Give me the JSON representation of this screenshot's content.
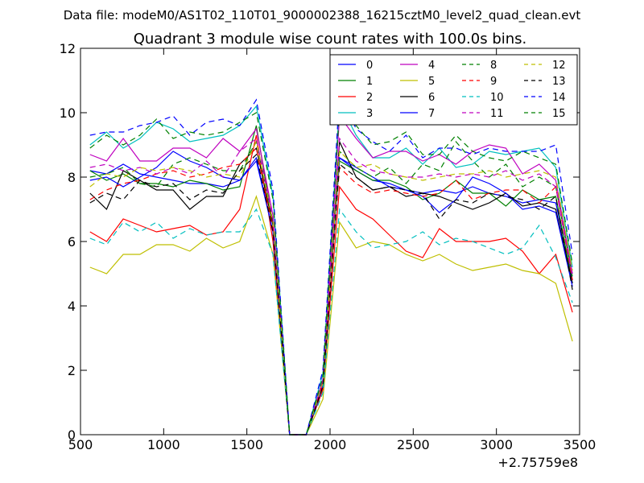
{
  "figure": {
    "suptitle": "Data file: modeM0/AS1T02_110T01_9000002388_16215cztM0_level2_quad_clean.evt"
  },
  "chart_data": {
    "type": "line",
    "title": "Quadrant 3 module wise count rates with 100.0s bins.",
    "xlabel": "",
    "ylabel": "",
    "x_offset_label": "+2.75759e8",
    "xlim": [
      500,
      3500
    ],
    "ylim": [
      0,
      12
    ],
    "xticks": [
      500,
      1000,
      1500,
      2000,
      2500,
      3000,
      3500
    ],
    "yticks": [
      0,
      2,
      4,
      6,
      8,
      10,
      12
    ],
    "grid": false,
    "legend_position": "top-right",
    "legend_columns": 4,
    "x": [
      557,
      657,
      757,
      857,
      957,
      1057,
      1157,
      1257,
      1357,
      1457,
      1557,
      1657,
      1757,
      1857,
      1957,
      2057,
      2157,
      2257,
      2357,
      2457,
      2557,
      2657,
      2757,
      2857,
      2957,
      3057,
      3157,
      3257,
      3357,
      3457
    ],
    "series": [
      {
        "name": "0",
        "color": "#0000ff",
        "dash": "solid",
        "values": [
          8.2,
          8.1,
          8.4,
          8.1,
          8.0,
          7.9,
          7.8,
          7.8,
          7.7,
          7.9,
          8.6,
          6.3,
          0,
          0,
          1.6,
          8.6,
          8.2,
          7.9,
          7.8,
          7.6,
          7.5,
          7.6,
          7.5,
          7.7,
          7.5,
          7.4,
          7.2,
          7.3,
          7.2,
          4.8
        ]
      },
      {
        "name": "1",
        "color": "#008000",
        "dash": "solid",
        "values": [
          8.2,
          7.9,
          8.1,
          7.8,
          7.8,
          7.7,
          7.9,
          7.8,
          7.6,
          7.7,
          9.6,
          6.5,
          0,
          0,
          1.6,
          8.5,
          8.2,
          7.9,
          7.9,
          7.7,
          7.3,
          7.5,
          7.9,
          7.5,
          7.5,
          7.1,
          7.6,
          7.3,
          7.4,
          4.7
        ]
      },
      {
        "name": "2",
        "color": "#ff0000",
        "dash": "solid",
        "values": [
          6.3,
          6.0,
          6.7,
          6.5,
          6.3,
          6.4,
          6.5,
          6.2,
          6.3,
          7.0,
          9.3,
          6.0,
          0,
          0,
          1.4,
          7.7,
          7.0,
          6.7,
          6.2,
          5.7,
          5.5,
          6.4,
          6.0,
          6.0,
          6.0,
          6.1,
          5.7,
          5.0,
          5.6,
          3.8
        ]
      },
      {
        "name": "3",
        "color": "#00bfbf",
        "dash": "solid",
        "values": [
          9.0,
          9.4,
          8.9,
          9.2,
          9.7,
          9.5,
          9.1,
          9.2,
          9.3,
          9.6,
          10.2,
          7.4,
          0,
          0,
          1.9,
          10.3,
          9.3,
          8.6,
          8.6,
          8.9,
          8.4,
          8.9,
          8.3,
          8.4,
          8.8,
          8.7,
          8.8,
          8.9,
          8.3,
          5.2
        ]
      },
      {
        "name": "4",
        "color": "#bf00bf",
        "dash": "solid",
        "values": [
          8.7,
          8.5,
          9.2,
          8.5,
          8.5,
          8.9,
          8.9,
          8.6,
          9.2,
          8.8,
          9.5,
          6.8,
          0,
          0,
          1.7,
          9.9,
          9.2,
          8.6,
          8.8,
          8.8,
          8.5,
          8.7,
          8.4,
          8.8,
          9.0,
          8.9,
          8.1,
          8.4,
          7.9,
          5.0
        ]
      },
      {
        "name": "5",
        "color": "#bfbf00",
        "dash": "solid",
        "values": [
          5.2,
          5.0,
          5.6,
          5.6,
          5.9,
          5.9,
          5.7,
          6.1,
          5.8,
          6.0,
          7.4,
          5.6,
          0,
          0,
          1.1,
          6.6,
          5.8,
          6.0,
          5.9,
          5.6,
          5.4,
          5.6,
          5.3,
          5.1,
          5.2,
          5.3,
          5.1,
          5.0,
          4.7,
          2.9
        ]
      },
      {
        "name": "6",
        "color": "#000000",
        "dash": "solid",
        "values": [
          7.5,
          7.0,
          8.2,
          7.9,
          7.6,
          7.6,
          7.0,
          7.4,
          7.4,
          8.4,
          8.9,
          6.5,
          0,
          0,
          1.5,
          9.1,
          8.0,
          7.6,
          7.7,
          7.4,
          7.5,
          7.4,
          7.2,
          7.0,
          7.2,
          7.5,
          7.1,
          7.2,
          7.0,
          4.7
        ]
      },
      {
        "name": "7",
        "color": "#0000ff",
        "dash": "solid",
        "values": [
          7.9,
          8.0,
          7.7,
          8.0,
          8.3,
          8.8,
          8.5,
          8.3,
          8.0,
          7.9,
          8.5,
          6.3,
          0,
          0,
          1.5,
          8.6,
          8.3,
          8.0,
          7.7,
          7.6,
          7.4,
          6.9,
          7.3,
          8.0,
          7.8,
          7.5,
          7.0,
          7.1,
          6.9,
          4.6
        ]
      },
      {
        "name": "8",
        "color": "#008000",
        "dash": "dashed",
        "values": [
          8.0,
          8.1,
          8.3,
          7.8,
          7.7,
          8.4,
          8.6,
          8.4,
          8.2,
          8.2,
          9.1,
          6.6,
          0,
          0,
          1.6,
          8.8,
          8.3,
          8.0,
          8.3,
          7.8,
          8.4,
          8.2,
          9.1,
          8.5,
          8.0,
          8.4,
          7.7,
          8.0,
          7.7,
          4.9
        ]
      },
      {
        "name": "9",
        "color": "#ff0000",
        "dash": "dashed",
        "values": [
          7.3,
          7.6,
          7.8,
          7.9,
          8.1,
          8.2,
          8.0,
          8.1,
          8.3,
          8.4,
          8.9,
          6.4,
          0,
          0,
          1.6,
          8.3,
          7.8,
          7.5,
          7.6,
          7.5,
          7.4,
          7.5,
          7.9,
          7.3,
          7.5,
          7.6,
          7.6,
          7.2,
          7.7,
          4.8
        ]
      },
      {
        "name": "10",
        "color": "#00bfbf",
        "dash": "dashed",
        "values": [
          6.1,
          5.9,
          6.6,
          6.3,
          6.6,
          6.1,
          6.4,
          6.2,
          6.3,
          6.3,
          7.0,
          5.6,
          0,
          0,
          1.3,
          7.0,
          6.3,
          5.8,
          5.9,
          6.0,
          6.3,
          5.9,
          6.1,
          6.0,
          5.8,
          5.6,
          5.8,
          6.5,
          5.5,
          4.1
        ]
      },
      {
        "name": "11",
        "color": "#bf00bf",
        "dash": "dashed",
        "values": [
          8.3,
          8.4,
          8.2,
          8.3,
          8.1,
          8.3,
          8.1,
          8.5,
          8.0,
          8.8,
          9.2,
          6.7,
          0,
          0,
          1.7,
          9.2,
          8.5,
          8.2,
          8.1,
          8.0,
          8.0,
          8.1,
          8.0,
          8.1,
          8.0,
          8.2,
          7.9,
          8.1,
          7.7,
          4.9
        ]
      },
      {
        "name": "12",
        "color": "#bfbf00",
        "dash": "dashed",
        "values": [
          7.7,
          8.1,
          8.0,
          8.3,
          8.2,
          8.3,
          8.2,
          8.0,
          8.1,
          8.0,
          9.1,
          6.6,
          0,
          0,
          1.6,
          8.8,
          8.3,
          8.4,
          8.1,
          8.0,
          7.9,
          8.0,
          8.1,
          8.1,
          8.2,
          8.0,
          8.1,
          8.2,
          8.0,
          5.1
        ]
      },
      {
        "name": "13",
        "color": "#000000",
        "dash": "dashed",
        "values": [
          7.2,
          7.5,
          7.3,
          7.9,
          7.7,
          7.8,
          7.3,
          7.6,
          7.5,
          8.2,
          8.7,
          6.3,
          0,
          0,
          1.5,
          8.4,
          8.0,
          7.6,
          7.7,
          7.6,
          7.5,
          6.7,
          7.3,
          7.2,
          7.5,
          7.4,
          7.3,
          7.0,
          7.4,
          4.5
        ]
      },
      {
        "name": "14",
        "color": "#0000ff",
        "dash": "dashed",
        "values": [
          9.3,
          9.4,
          9.4,
          9.6,
          9.7,
          9.9,
          9.3,
          9.7,
          9.8,
          9.6,
          10.4,
          7.6,
          0,
          0,
          2.0,
          10.6,
          9.5,
          9.1,
          8.8,
          9.3,
          8.6,
          8.9,
          8.9,
          8.7,
          8.9,
          8.8,
          8.8,
          8.8,
          9.0,
          5.6
        ]
      },
      {
        "name": "15",
        "color": "#008000",
        "dash": "dashed",
        "values": [
          8.9,
          9.3,
          9.0,
          9.3,
          9.8,
          9.2,
          9.4,
          9.3,
          9.4,
          9.7,
          10.0,
          7.3,
          0,
          0,
          1.8,
          10.1,
          9.6,
          9.0,
          9.1,
          9.4,
          8.7,
          8.7,
          9.3,
          8.8,
          8.6,
          8.5,
          8.8,
          8.6,
          8.4,
          5.3
        ]
      }
    ]
  }
}
